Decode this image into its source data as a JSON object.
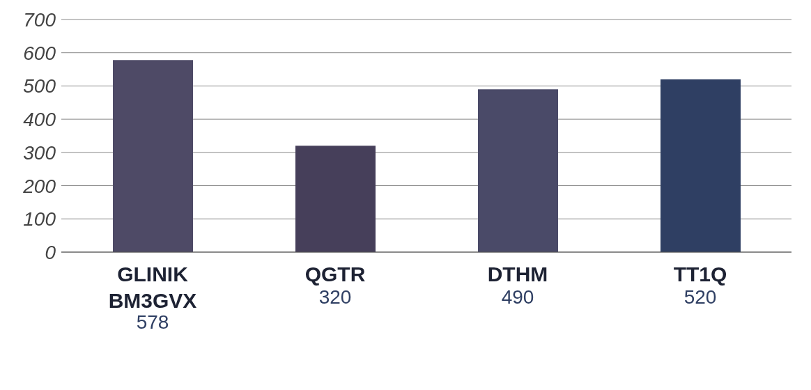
{
  "chart_data": {
    "type": "bar",
    "categories": [
      "GLINIK BM3GVX",
      "QGTR",
      "DTHM",
      "TT1Q"
    ],
    "values": [
      578,
      320,
      490,
      520
    ],
    "colors": [
      "#4e4a66",
      "#463f5a",
      "#4a4a68",
      "#2f3f63"
    ],
    "ylim": [
      0,
      700
    ],
    "yticks": [
      0,
      100,
      200,
      300,
      400,
      500,
      600,
      700
    ],
    "grid": "y",
    "data_labels": true
  }
}
